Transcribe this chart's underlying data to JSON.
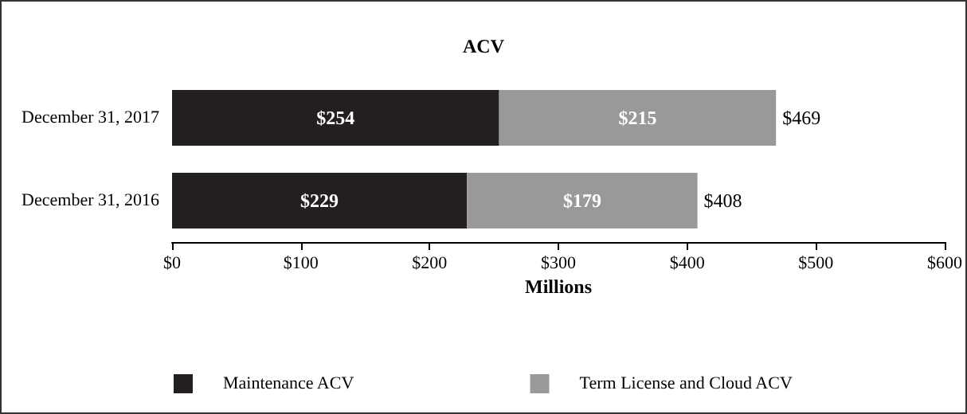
{
  "chart_data": {
    "type": "bar",
    "title": "ACV",
    "xlabel": "Millions",
    "orientation": "horizontal",
    "stacked": true,
    "categories": [
      "December 31, 2017",
      "December 31, 2016"
    ],
    "series": [
      {
        "name": "Maintenance ACV",
        "color": "#231f20",
        "values": [
          254,
          229
        ],
        "value_labels": [
          "$254",
          "$229"
        ]
      },
      {
        "name": "Term License and Cloud ACV",
        "color": "#999999",
        "values": [
          215,
          179
        ],
        "value_labels": [
          "$215",
          "$179"
        ]
      }
    ],
    "totals": [
      "$469",
      "$408"
    ],
    "xlim": [
      0,
      600
    ],
    "xticks": [
      {
        "value": 0,
        "label": "$0"
      },
      {
        "value": 100,
        "label": "$100"
      },
      {
        "value": 200,
        "label": "$200"
      },
      {
        "value": 300,
        "label": "$300"
      },
      {
        "value": 400,
        "label": "$400"
      },
      {
        "value": 500,
        "label": "$500"
      },
      {
        "value": 600,
        "label": "$600"
      }
    ],
    "grid": false,
    "legend": "bottom"
  }
}
